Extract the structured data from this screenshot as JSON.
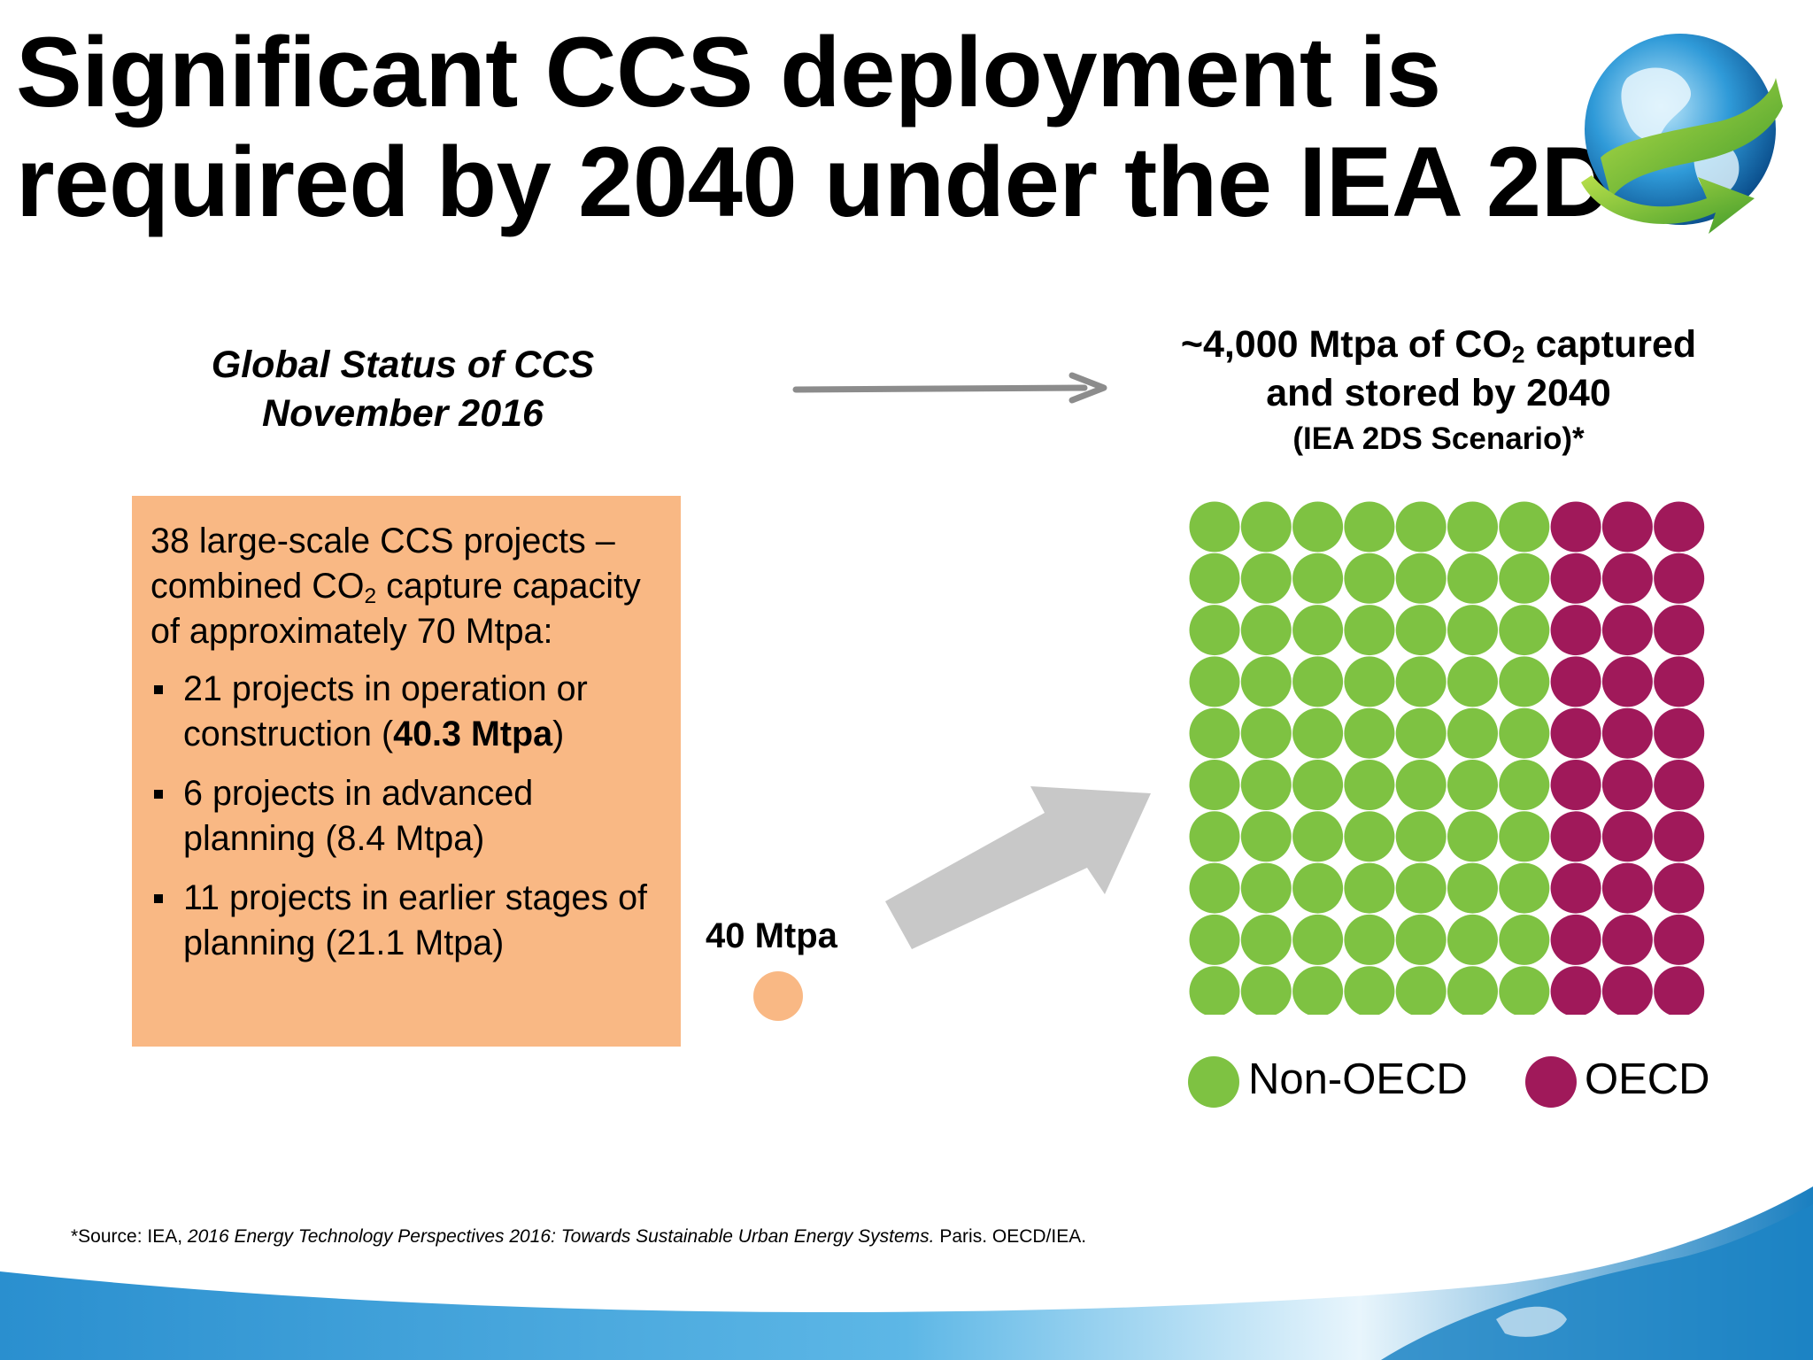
{
  "title": {
    "line1": "Significant CCS deployment is",
    "line2": "required by 2040 under the IEA 2DS"
  },
  "left_heading": {
    "line1": "Global Status of CCS",
    "line2": "November 2016"
  },
  "right_heading": {
    "line1_pre": "~4,000 Mtpa of CO",
    "line1_sub": "2",
    "line1_post": " captured",
    "line2": "and stored by 2040",
    "line3": "(IEA 2DS Scenario)*"
  },
  "status_box": {
    "intro_pre": "38 large-scale CCS projects – combined CO",
    "intro_sub": "2",
    "intro_post": " capture capacity of approximately 70 Mtpa:",
    "item1_pre": "21 projects in operation or construction (",
    "item1_bold": "40.3 Mtpa",
    "item1_post": ")",
    "item2": "6 projects in advanced planning (8.4 Mtpa)",
    "item3": "11 projects in earlier stages of planning (21.1 Mtpa)"
  },
  "current": {
    "label": "40 Mtpa"
  },
  "waffle": {
    "rows": 10,
    "cols": 10,
    "non_oecd_cols": 7,
    "oecd_cols": 3
  },
  "legend": {
    "non_oecd": "Non-OECD",
    "oecd": "OECD"
  },
  "source": {
    "pre": "*Source: IEA, ",
    "italic": "2016 Energy Technology Perspectives 2016: Towards Sustainable Urban Energy Systems.",
    "post": " Paris. OECD/IEA."
  },
  "colors": {
    "non_oecd": "#7ec242",
    "oecd": "#a0195a",
    "box": "#f9b884",
    "arrow": "#c8c8c8",
    "band": "#1a8ccc"
  }
}
